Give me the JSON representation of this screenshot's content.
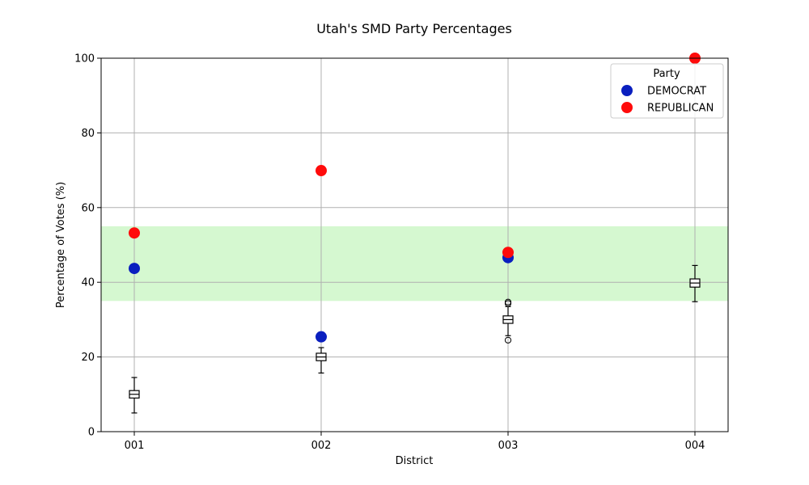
{
  "chart_data": {
    "type": "scatter",
    "title": "Utah's SMD Party Percentages",
    "xlabel": "District",
    "ylabel": "Percentage of Votes (%)",
    "categories": [
      "001",
      "002",
      "003",
      "004"
    ],
    "ylim": [
      0,
      100
    ],
    "yticks": [
      0,
      20,
      40,
      60,
      80,
      100
    ],
    "grid": true,
    "band": {
      "from": 35,
      "to": 55,
      "color": "#d5f8d0"
    },
    "legend": {
      "title": "Party",
      "placement": "top-right"
    },
    "series": [
      {
        "name": "DEMOCRAT",
        "color": "#0a1fbf",
        "values": [
          43.7,
          25.4,
          46.6,
          null
        ]
      },
      {
        "name": "REPUBLICAN",
        "color": "#ff0b0b",
        "values": [
          53.2,
          69.9,
          48.0,
          100
        ]
      }
    ],
    "boxplots": [
      {
        "category": "001",
        "whisker_low": 5,
        "q1": 9,
        "median": 10,
        "q3": 11,
        "whisker_high": 14.5,
        "outliers": []
      },
      {
        "category": "002",
        "whisker_low": 15.7,
        "q1": 19,
        "median": 20,
        "q3": 21,
        "whisker_high": 22.5,
        "outliers": []
      },
      {
        "category": "003",
        "whisker_low": 25.7,
        "q1": 29,
        "median": 30,
        "q3": 31,
        "whisker_high": 33.5,
        "outliers": [
          24.5,
          34.3,
          34.7
        ]
      },
      {
        "category": "004",
        "whisker_low": 34.8,
        "q1": 38.7,
        "median": 39.8,
        "q3": 40.9,
        "whisker_high": 44.5,
        "outliers": []
      }
    ]
  }
}
